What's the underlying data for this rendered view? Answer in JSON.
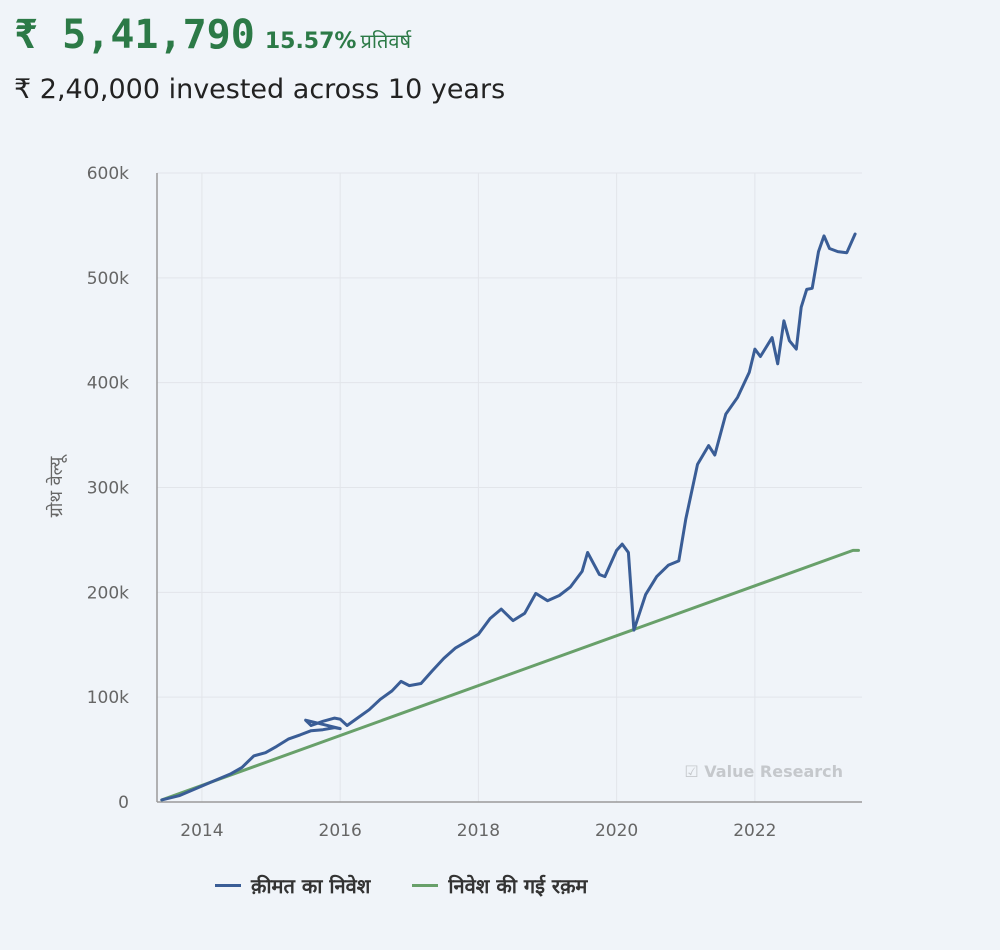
{
  "header": {
    "amount": "₹ 5,41,790",
    "rate": "15.57%",
    "rate_suffix": "प्रतिवर्ष",
    "subline": "₹ 2,40,000 invested across 10 years"
  },
  "colors": {
    "value_series": "#3a5d96",
    "invested_series": "#68a06a",
    "headline": "#2c7a47",
    "grid": "#e2e5ea",
    "axis": "#9a9a9a"
  },
  "watermark": "☑ Value Research",
  "chart_data": {
    "type": "line",
    "title": "",
    "xlabel": "",
    "ylabel": "ग्रोथ वेल्यू",
    "xlim": [
      2013.35,
      2023.55
    ],
    "ylim": [
      0,
      600000
    ],
    "x_ticks": [
      2014,
      2016,
      2018,
      2020,
      2022
    ],
    "x_tick_labels": [
      "2014",
      "2016",
      "2018",
      "2020",
      "2022"
    ],
    "y_ticks": [
      0,
      100000,
      200000,
      300000,
      400000,
      500000,
      600000
    ],
    "y_tick_labels": [
      "0",
      "100k",
      "200k",
      "300k",
      "400k",
      "500k",
      "600k"
    ],
    "grid": true,
    "legend_position": "bottom",
    "series": [
      {
        "name": "क़ीमत का निवेश",
        "color": "#3a5d96",
        "points": [
          [
            2013.42,
            2000
          ],
          [
            2013.67,
            6000
          ],
          [
            2013.92,
            13000
          ],
          [
            2014.17,
            20000
          ],
          [
            2014.42,
            27000
          ],
          [
            2014.58,
            33000
          ],
          [
            2014.75,
            44000
          ],
          [
            2014.92,
            47000
          ],
          [
            2015.08,
            53000
          ],
          [
            2015.25,
            60000
          ],
          [
            2015.42,
            64000
          ],
          [
            2015.58,
            68000
          ],
          [
            2015.75,
            69000
          ],
          [
            2015.92,
            71000
          ],
          [
            2016.0,
            70000
          ],
          [
            2015.5,
            78000
          ],
          [
            2015.58,
            73000
          ],
          [
            2015.75,
            77000
          ],
          [
            2015.92,
            80000
          ],
          [
            2016.0,
            79000
          ],
          [
            2016.1,
            73000
          ],
          [
            2016.25,
            80000
          ],
          [
            2016.42,
            88000
          ],
          [
            2016.58,
            98000
          ],
          [
            2016.75,
            106000
          ],
          [
            2016.88,
            115000
          ],
          [
            2017.0,
            111000
          ],
          [
            2017.17,
            113000
          ],
          [
            2017.33,
            125000
          ],
          [
            2017.5,
            137000
          ],
          [
            2017.67,
            147000
          ],
          [
            2017.83,
            153000
          ],
          [
            2018.0,
            160000
          ],
          [
            2018.17,
            175000
          ],
          [
            2018.33,
            184000
          ],
          [
            2018.5,
            173000
          ],
          [
            2018.67,
            180000
          ],
          [
            2018.83,
            199000
          ],
          [
            2019.0,
            192000
          ],
          [
            2019.17,
            197000
          ],
          [
            2019.33,
            205000
          ],
          [
            2019.5,
            220000
          ],
          [
            2019.58,
            238000
          ],
          [
            2019.75,
            217000
          ],
          [
            2019.83,
            215000
          ],
          [
            2020.0,
            240000
          ],
          [
            2020.08,
            246000
          ],
          [
            2020.17,
            238000
          ],
          [
            2020.25,
            164000
          ],
          [
            2020.42,
            198000
          ],
          [
            2020.58,
            215000
          ],
          [
            2020.75,
            226000
          ],
          [
            2020.9,
            230000
          ],
          [
            2021.0,
            270000
          ],
          [
            2021.17,
            322000
          ],
          [
            2021.33,
            340000
          ],
          [
            2021.42,
            331000
          ],
          [
            2021.58,
            370000
          ],
          [
            2021.75,
            386000
          ],
          [
            2021.92,
            410000
          ],
          [
            2022.0,
            432000
          ],
          [
            2022.08,
            425000
          ],
          [
            2022.25,
            443000
          ],
          [
            2022.33,
            418000
          ],
          [
            2022.42,
            459000
          ],
          [
            2022.5,
            440000
          ],
          [
            2022.6,
            432000
          ],
          [
            2022.67,
            472000
          ],
          [
            2022.75,
            489000
          ],
          [
            2022.83,
            490000
          ],
          [
            2022.92,
            525000
          ],
          [
            2023.0,
            540000
          ],
          [
            2023.08,
            528000
          ],
          [
            2023.2,
            525000
          ],
          [
            2023.33,
            524000
          ],
          [
            2023.45,
            541790
          ]
        ]
      },
      {
        "name": "निवेश की गई रक़म",
        "color": "#68a06a",
        "points": [
          [
            2013.42,
            2000
          ],
          [
            2023.42,
            240000
          ],
          [
            2023.5,
            240000
          ]
        ]
      }
    ]
  }
}
